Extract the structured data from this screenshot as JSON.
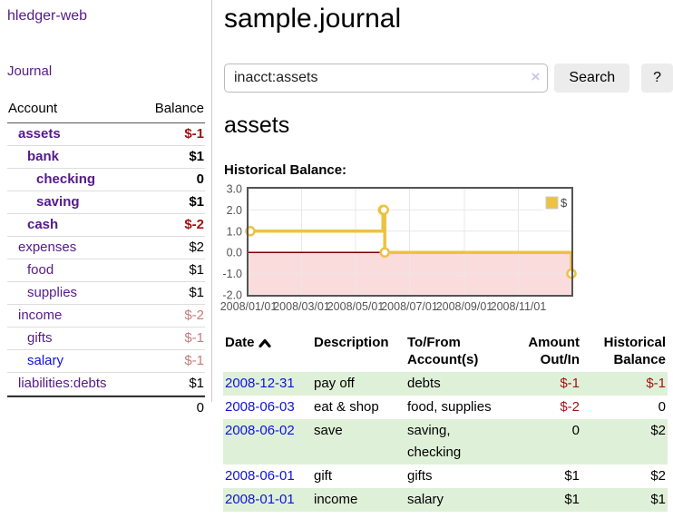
{
  "brand": "hledger-web",
  "colors": {
    "link_purple": "#551a8b",
    "link_blue": "#1012d8",
    "negative_bold": "#9d1313",
    "negative_light": "#c47c7c",
    "row_green": "#dff0d8"
  },
  "sidebar": {
    "nav_journal": "Journal",
    "accounts_table": {
      "header_account": "Account",
      "header_balance": "Balance",
      "rows": [
        {
          "name": "assets",
          "indent": 1,
          "bold": true,
          "color": "purple",
          "balance": "$-1",
          "neg": true
        },
        {
          "name": "bank",
          "indent": 2,
          "bold": true,
          "color": "purple",
          "balance": "$1",
          "neg": false
        },
        {
          "name": "checking",
          "indent": 3,
          "bold": true,
          "color": "purple",
          "balance": "0",
          "neg": false
        },
        {
          "name": "saving",
          "indent": 3,
          "bold": true,
          "color": "purple",
          "balance": "$1",
          "neg": false
        },
        {
          "name": "cash",
          "indent": 2,
          "bold": true,
          "color": "purple",
          "balance": "$-2",
          "neg": true
        },
        {
          "name": "expenses",
          "indent": 1,
          "bold": false,
          "color": "purple",
          "balance": "$2",
          "neg": false
        },
        {
          "name": "food",
          "indent": 2,
          "bold": false,
          "color": "purple",
          "balance": "$1",
          "neg": false
        },
        {
          "name": "supplies",
          "indent": 2,
          "bold": false,
          "color": "purple",
          "balance": "$1",
          "neg": false
        },
        {
          "name": "income",
          "indent": 1,
          "bold": false,
          "color": "purple",
          "balance": "$-2",
          "neg": true
        },
        {
          "name": "gifts",
          "indent": 2,
          "bold": false,
          "color": "purple",
          "balance": "$-1",
          "neg": true
        },
        {
          "name": "salary",
          "indent": 2,
          "bold": false,
          "color": "blue",
          "balance": "$-1",
          "neg": true
        },
        {
          "name": "liabilities:debts",
          "indent": 1,
          "bold": false,
          "color": "purple",
          "balance": "$1",
          "neg": false
        }
      ],
      "total": "0"
    }
  },
  "main": {
    "title": "sample.journal",
    "search": {
      "value": "inacct:assets",
      "clear_label": "×",
      "button_label": "Search",
      "help_label": "?"
    },
    "account_heading": "assets",
    "chart_label": "Historical Balance:",
    "register": {
      "headers": {
        "date": "Date",
        "description": "Description",
        "account_line1": "To/From",
        "account_line2": "Account(s)",
        "amount_line1": "Amount",
        "amount_line2": "Out/In",
        "balance_line1": "Historical",
        "balance_line2": "Balance"
      },
      "rows": [
        {
          "date": "2008-12-31",
          "description": "pay off",
          "accounts": [
            "debts"
          ],
          "amount": "$-1",
          "amount_neg": true,
          "balance": "$-1",
          "balance_neg": true
        },
        {
          "date": "2008-06-03",
          "description": "eat & shop",
          "accounts": [
            "food, supplies"
          ],
          "amount": "$-2",
          "amount_neg": true,
          "balance": "0",
          "balance_neg": false
        },
        {
          "date": "2008-06-02",
          "description": "save",
          "accounts": [
            "saving,",
            "checking"
          ],
          "amount": "0",
          "amount_neg": false,
          "balance": "$2",
          "balance_neg": false
        },
        {
          "date": "2008-06-01",
          "description": "gift",
          "accounts": [
            "gifts"
          ],
          "amount": "$1",
          "amount_neg": false,
          "balance": "$2",
          "balance_neg": false
        },
        {
          "date": "2008-01-01",
          "description": "income",
          "accounts": [
            "salary"
          ],
          "amount": "$1",
          "amount_neg": false,
          "balance": "$1",
          "balance_neg": false
        }
      ]
    }
  },
  "chart_data": {
    "type": "line",
    "step": true,
    "title": "Historical Balance:",
    "series": [
      {
        "name": "$",
        "color": "#edc240",
        "points": [
          [
            "2008-01-01",
            1
          ],
          [
            "2008-06-01",
            2
          ],
          [
            "2008-06-02",
            2
          ],
          [
            "2008-06-03",
            0
          ],
          [
            "2008-12-31",
            -1
          ]
        ]
      }
    ],
    "x_range": [
      "2008-01-01",
      "2008-12-31"
    ],
    "x_tick_labels": [
      "2008/01/01",
      "2008/03/01",
      "2008/05/01",
      "2008/07/01",
      "2008/09/01",
      "2008/11/01"
    ],
    "y_ticks": [
      3,
      2,
      1,
      0,
      -1,
      -2
    ],
    "ylim": [
      -2,
      3
    ],
    "grid": true,
    "legend": {
      "label": "$",
      "position": "top-right"
    },
    "colors": {
      "series": "#edc240",
      "negative_region": "#fbdcdc",
      "zero_line": "#800000",
      "border": "#545454",
      "grid": "#e8e8e8",
      "tick_text": "#545454"
    }
  }
}
